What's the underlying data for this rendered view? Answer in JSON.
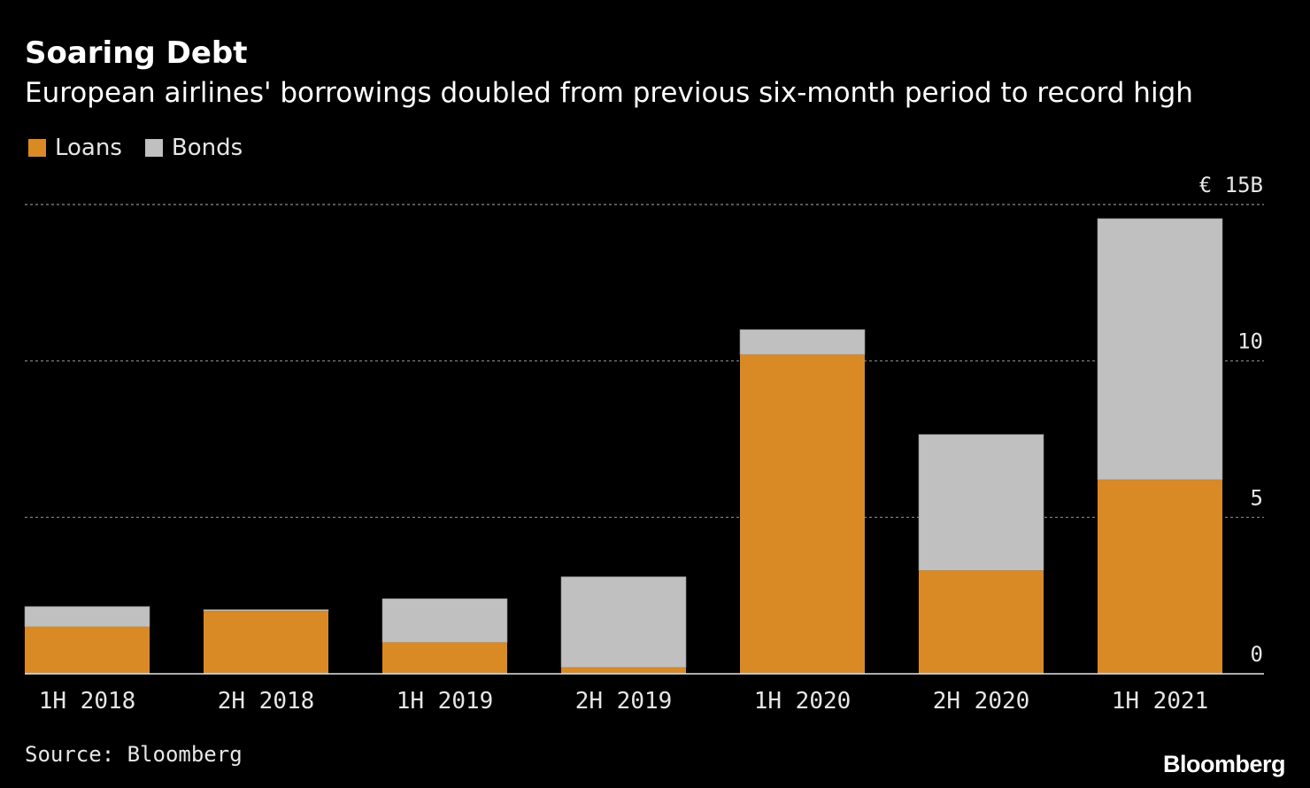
{
  "header": {
    "title": "Soaring Debt",
    "subtitle": "European airlines' borrowings doubled from previous six-month period to record high"
  },
  "legend": {
    "items": [
      {
        "label": "Loans",
        "color": "#d98a25"
      },
      {
        "label": "Bonds",
        "color": "#c0c0c0"
      }
    ]
  },
  "footer": {
    "source": "Source: Bloomberg",
    "brand": "Bloomberg"
  },
  "chart_data": {
    "type": "bar",
    "stacked": true,
    "title": "Soaring Debt",
    "subtitle": "European airlines' borrowings doubled from previous six-month period to record high",
    "categories": [
      "1H 2018",
      "2H 2018",
      "1H 2019",
      "2H 2019",
      "1H 2020",
      "2H 2020",
      "1H 2021"
    ],
    "series": [
      {
        "name": "Loans",
        "color": "#d98a25",
        "values": [
          1.5,
          2.0,
          1.0,
          0.2,
          10.2,
          3.3,
          6.2
        ]
      },
      {
        "name": "Bonds",
        "color": "#c0c0c0",
        "values": [
          0.65,
          0.05,
          1.4,
          2.9,
          0.8,
          4.35,
          8.35
        ]
      }
    ],
    "ylim": [
      0,
      15
    ],
    "yticks": [
      0,
      5,
      10,
      15
    ],
    "ytick_labels": [
      "0",
      "5",
      "10",
      "€ 15B"
    ],
    "xlabel": "",
    "ylabel": "",
    "grid": true,
    "legend_position": "top-left"
  }
}
